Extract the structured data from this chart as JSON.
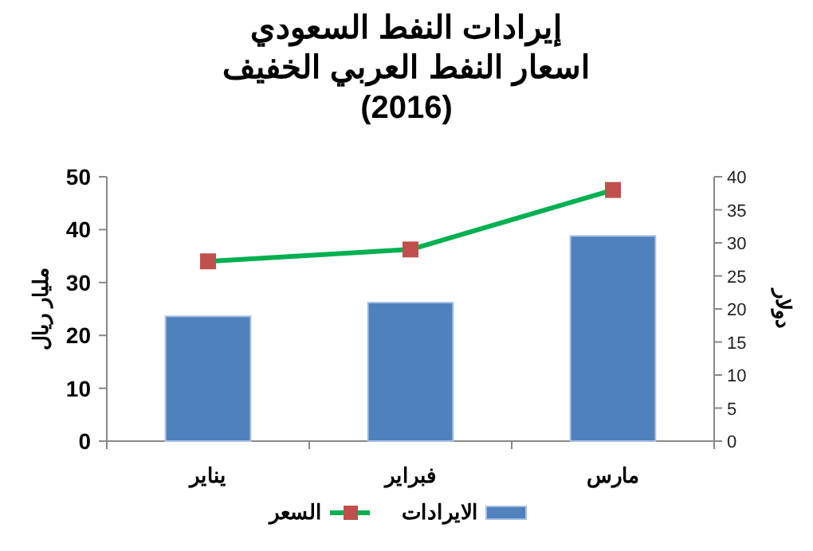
{
  "chart_data": {
    "type": "bar",
    "title": "إيرادات النفط السعودي\nاسعار النفط العربي الخفيف\n(2016)",
    "ylabel": "مليار ريال",
    "y2label": "دولار",
    "categories": [
      "يناير",
      "فبراير",
      "مارس"
    ],
    "series": [
      {
        "name": "الايرادات",
        "color": "#4f81bd",
        "values": [
          23.6,
          26.2,
          38.8
        ]
      },
      {
        "name": "السعر",
        "type": "line",
        "color": "#00b050",
        "axis": "y2",
        "values": [
          27.2,
          29.0,
          38.0
        ]
      }
    ],
    "ylim": [
      0,
      50
    ],
    "yticks": [
      0,
      10,
      20,
      30,
      40,
      50
    ],
    "y2lim": [
      0,
      40
    ],
    "y2ticks": [
      0,
      5,
      10,
      15,
      20,
      25,
      30,
      35,
      40
    ],
    "marker": "square",
    "legend": "bottom",
    "grid": false
  }
}
